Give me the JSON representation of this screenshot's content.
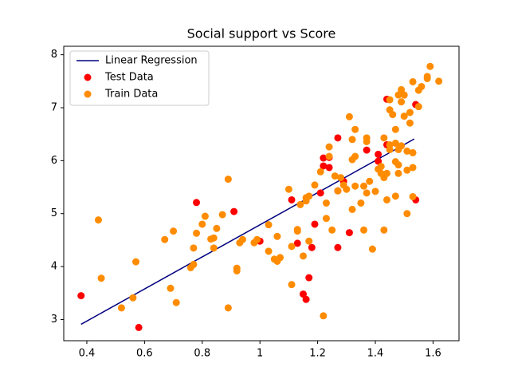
{
  "chart_data": {
    "type": "scatter",
    "title": "Social support vs Score",
    "xlim": [
      0.32,
      1.69
    ],
    "ylim": [
      2.6,
      8.16
    ],
    "xticks": [
      0.4,
      0.6,
      0.8,
      1.0,
      1.2,
      1.4,
      1.6
    ],
    "yticks": [
      3,
      4,
      5,
      6,
      7,
      8
    ],
    "legend": "upper left",
    "series": [
      {
        "name": "Linear Regression",
        "type": "line",
        "color": "#000080",
        "x": [
          0.38,
          1.535
        ],
        "y": [
          2.91,
          6.41
        ]
      },
      {
        "name": "Test Data",
        "type": "scatter",
        "color": "#ff0000",
        "x": [
          0.38,
          0.58,
          0.78,
          0.91,
          1.0,
          1.11,
          1.13,
          1.15,
          1.16,
          1.17,
          1.18,
          1.19,
          1.21,
          1.22,
          1.22,
          1.24,
          1.24,
          1.27,
          1.27,
          1.27,
          1.29,
          1.31,
          1.37,
          1.41,
          1.41,
          1.44,
          1.44,
          1.54,
          1.54
        ],
        "y": [
          3.45,
          2.85,
          5.21,
          5.04,
          4.48,
          5.26,
          4.44,
          3.48,
          3.38,
          3.79,
          4.36,
          4.8,
          5.39,
          6.05,
          5.9,
          6.06,
          5.87,
          6.43,
          5.43,
          4.36,
          5.61,
          4.64,
          6.2,
          6.12,
          5.99,
          6.3,
          7.16,
          7.06,
          5.26
        ]
      },
      {
        "name": "Train Data",
        "type": "scatter",
        "color": "#ff8c00",
        "x": [
          0.44,
          0.45,
          0.52,
          0.56,
          0.57,
          0.67,
          0.69,
          0.7,
          0.71,
          0.76,
          0.77,
          0.77,
          0.78,
          0.8,
          0.81,
          0.83,
          0.84,
          0.84,
          0.85,
          0.87,
          0.89,
          0.89,
          0.92,
          0.92,
          0.93,
          0.94,
          0.98,
          0.99,
          1.03,
          1.03,
          1.05,
          1.06,
          1.06,
          1.07,
          1.1,
          1.11,
          1.11,
          1.13,
          1.13,
          1.14,
          1.15,
          1.16,
          1.16,
          1.17,
          1.17,
          1.19,
          1.21,
          1.22,
          1.23,
          1.23,
          1.24,
          1.24,
          1.25,
          1.26,
          1.27,
          1.28,
          1.29,
          1.3,
          1.31,
          1.32,
          1.32,
          1.32,
          1.33,
          1.33,
          1.33,
          1.35,
          1.36,
          1.36,
          1.37,
          1.37,
          1.37,
          1.38,
          1.39,
          1.4,
          1.41,
          1.42,
          1.42,
          1.43,
          1.43,
          1.43,
          1.44,
          1.44,
          1.45,
          1.45,
          1.45,
          1.45,
          1.46,
          1.47,
          1.47,
          1.47,
          1.47,
          1.48,
          1.48,
          1.48,
          1.48,
          1.49,
          1.49,
          1.49,
          1.5,
          1.5,
          1.51,
          1.51,
          1.51,
          1.52,
          1.52,
          1.53,
          1.53,
          1.53,
          1.53,
          1.55,
          1.55,
          1.56,
          1.58,
          1.59,
          1.58,
          1.62
        ],
        "y": [
          4.88,
          3.78,
          3.22,
          3.41,
          4.09,
          4.51,
          3.59,
          4.67,
          3.32,
          3.98,
          4.04,
          4.35,
          4.63,
          4.8,
          4.95,
          4.52,
          4.54,
          4.35,
          4.72,
          4.98,
          5.65,
          3.22,
          3.92,
          3.97,
          4.45,
          4.51,
          4.45,
          4.51,
          4.79,
          4.29,
          4.14,
          4.57,
          4.1,
          4.17,
          5.46,
          4.38,
          3.66,
          4.7,
          4.67,
          5.17,
          4.2,
          5.3,
          5.24,
          4.48,
          5.33,
          5.54,
          5.79,
          3.07,
          4.91,
          5.2,
          6.08,
          6.26,
          4.69,
          5.71,
          5.43,
          5.68,
          5.54,
          5.46,
          6.83,
          6.4,
          6.02,
          5.08,
          5.52,
          6.08,
          6.59,
          5.2,
          4.69,
          5.52,
          5.39,
          6.36,
          6.43,
          5.61,
          4.33,
          5.42,
          5.84,
          5.89,
          5.76,
          4.69,
          6.43,
          5.68,
          5.26,
          5.76,
          6.3,
          6.21,
          7.15,
          6.96,
          6.87,
          5.33,
          5.98,
          6.59,
          6.33,
          5.92,
          7.24,
          5.76,
          6.21,
          7.34,
          7.11,
          6.28,
          6.84,
          7.24,
          6.18,
          5.82,
          5.0,
          6.91,
          6.71,
          6.15,
          7.49,
          5.87,
          5.32,
          7.33,
          7.02,
          7.4,
          7.59,
          7.78,
          7.55,
          7.5
        ]
      }
    ]
  }
}
